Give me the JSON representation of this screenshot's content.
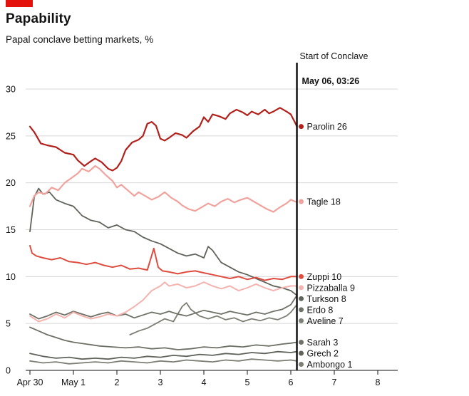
{
  "accent_color": "#E3120B",
  "header": {
    "title": "Papability",
    "subtitle": "Papal conclave betting markets, %"
  },
  "chart_data": {
    "type": "line",
    "title": "Papability",
    "subtitle": "Papal conclave betting markets, %",
    "grid": "horizontal",
    "legend_position": "right-of-lines",
    "x_axis": {
      "labels": [
        "Apr 30",
        "May 1",
        "2",
        "3",
        "4",
        "5",
        "6",
        "7",
        "8"
      ],
      "values": [
        0,
        1,
        2,
        3,
        4,
        5,
        6,
        7,
        8
      ],
      "unit": "days"
    },
    "y_axis": {
      "ticks": [
        0,
        5,
        10,
        15,
        20,
        25,
        30
      ],
      "range": [
        0,
        30
      ]
    },
    "annotation": {
      "label": "Start of Conclave",
      "timestamp": "May 06, 03:26",
      "x": 6.14,
      "color": "#121212"
    },
    "series": [
      {
        "id": "parolin",
        "name": "Parolin",
        "end_value": 26,
        "end_label": "Parolin 26",
        "color": "#b2201c",
        "width": 2.2,
        "x": [
          0,
          0.1,
          0.25,
          0.4,
          0.6,
          0.8,
          1.0,
          1.1,
          1.25,
          1.4,
          1.5,
          1.65,
          1.8,
          1.9,
          2.0,
          2.1,
          2.2,
          2.35,
          2.5,
          2.6,
          2.7,
          2.8,
          2.9,
          3.0,
          3.1,
          3.2,
          3.35,
          3.5,
          3.6,
          3.75,
          3.9,
          4.0,
          4.1,
          4.2,
          4.35,
          4.5,
          4.6,
          4.75,
          4.9,
          5.0,
          5.1,
          5.25,
          5.4,
          5.5,
          5.6,
          5.75,
          5.9,
          6.0,
          6.1,
          6.14
        ],
        "values": [
          26,
          25.4,
          24.2,
          24.0,
          23.8,
          23.2,
          23.0,
          22.4,
          21.8,
          22.3,
          22.6,
          22.2,
          21.5,
          21.3,
          21.6,
          22.3,
          23.5,
          24.3,
          24.6,
          25.0,
          26.3,
          26.5,
          26.1,
          24.7,
          24.5,
          24.8,
          25.3,
          25.1,
          24.8,
          25.5,
          26.0,
          27.0,
          26.5,
          27.3,
          27.1,
          26.8,
          27.4,
          27.8,
          27.5,
          27.2,
          27.6,
          27.3,
          27.8,
          27.4,
          27.6,
          28.0,
          27.6,
          27.3,
          26.4,
          26
        ]
      },
      {
        "id": "tagle",
        "name": "Tagle",
        "end_value": 18,
        "end_label": "Tagle 18",
        "color": "#f2a29c",
        "width": 2.2,
        "x": [
          0,
          0.1,
          0.2,
          0.35,
          0.5,
          0.65,
          0.8,
          0.95,
          1.1,
          1.2,
          1.35,
          1.5,
          1.6,
          1.75,
          1.9,
          2.0,
          2.1,
          2.25,
          2.4,
          2.5,
          2.65,
          2.8,
          2.95,
          3.1,
          3.25,
          3.4,
          3.5,
          3.65,
          3.8,
          3.95,
          4.1,
          4.25,
          4.4,
          4.55,
          4.7,
          4.85,
          5.0,
          5.15,
          5.3,
          5.45,
          5.6,
          5.75,
          5.9,
          6.0,
          6.1,
          6.14
        ],
        "values": [
          17.5,
          18.6,
          19.0,
          18.8,
          19.5,
          19.2,
          20.0,
          20.5,
          21.0,
          21.5,
          21.2,
          21.8,
          21.5,
          20.8,
          20.2,
          19.5,
          19.8,
          19.2,
          18.6,
          19.0,
          18.6,
          18.2,
          18.5,
          19.0,
          18.4,
          18.0,
          17.6,
          17.2,
          17.0,
          17.4,
          17.8,
          17.5,
          18.0,
          18.3,
          17.9,
          18.2,
          18.4,
          18.0,
          17.6,
          17.2,
          16.9,
          17.4,
          17.8,
          18.2,
          18.0,
          18.0
        ]
      },
      {
        "id": "zuppi",
        "name": "Zuppi",
        "end_value": 10,
        "end_label": "Zuppi 10",
        "color": "#de4c3f",
        "width": 2,
        "x": [
          0,
          0.05,
          0.15,
          0.3,
          0.5,
          0.7,
          0.9,
          1.1,
          1.3,
          1.5,
          1.7,
          1.9,
          2.1,
          2.3,
          2.5,
          2.7,
          2.85,
          2.95,
          3.05,
          3.2,
          3.4,
          3.6,
          3.8,
          4.0,
          4.2,
          4.4,
          4.6,
          4.8,
          5.0,
          5.2,
          5.4,
          5.6,
          5.8,
          6.0,
          6.14
        ],
        "values": [
          13.3,
          12.5,
          12.2,
          12.0,
          11.8,
          12.0,
          11.6,
          11.5,
          11.3,
          11.5,
          11.2,
          11.0,
          11.2,
          10.8,
          10.9,
          10.7,
          13.0,
          11.0,
          10.6,
          10.5,
          10.3,
          10.5,
          10.6,
          10.4,
          10.2,
          10.0,
          9.8,
          10.0,
          9.7,
          9.9,
          9.6,
          9.8,
          9.7,
          10.0,
          10
        ]
      },
      {
        "id": "pizzaballa",
        "name": "Pizzaballa",
        "end_value": 9,
        "end_label": "Pizzaballa 9",
        "color": "#f4b3ae",
        "width": 2,
        "x": [
          0,
          0.2,
          0.4,
          0.6,
          0.8,
          1.0,
          1.2,
          1.4,
          1.6,
          1.8,
          2.0,
          2.2,
          2.4,
          2.6,
          2.8,
          3.0,
          3.1,
          3.2,
          3.4,
          3.6,
          3.8,
          4.0,
          4.2,
          4.4,
          4.6,
          4.8,
          5.0,
          5.2,
          5.4,
          5.6,
          5.8,
          6.0,
          6.14
        ],
        "values": [
          5.8,
          5.2,
          5.5,
          6.0,
          5.6,
          6.2,
          5.8,
          5.5,
          5.7,
          6.0,
          5.8,
          6.2,
          6.8,
          7.5,
          8.5,
          9.0,
          9.4,
          9.0,
          9.2,
          8.8,
          9.0,
          9.4,
          9.0,
          8.7,
          9.0,
          8.5,
          8.8,
          9.2,
          8.8,
          8.5,
          8.8,
          9.0,
          9
        ]
      },
      {
        "id": "turkson",
        "name": "Turkson",
        "end_value": 8,
        "end_label": "Turkson 8",
        "color": "#5f635a",
        "width": 1.8,
        "x": [
          0,
          0.1,
          0.2,
          0.3,
          0.45,
          0.6,
          0.8,
          1.0,
          1.2,
          1.4,
          1.6,
          1.8,
          2.0,
          2.2,
          2.4,
          2.6,
          2.8,
          3.0,
          3.2,
          3.4,
          3.6,
          3.8,
          4.0,
          4.1,
          4.2,
          4.4,
          4.6,
          4.8,
          5.0,
          5.2,
          5.4,
          5.6,
          5.8,
          6.0,
          6.14
        ],
        "values": [
          14.8,
          18.5,
          19.4,
          18.8,
          19.0,
          18.2,
          17.8,
          17.5,
          16.5,
          16.0,
          15.8,
          15.2,
          15.5,
          15.0,
          14.8,
          14.2,
          13.8,
          13.5,
          13.0,
          12.5,
          12.2,
          12.4,
          12.0,
          13.2,
          12.8,
          11.5,
          11.0,
          10.5,
          10.2,
          9.8,
          9.4,
          9.0,
          8.8,
          8.5,
          8
        ]
      },
      {
        "id": "erdo",
        "name": "Erdo",
        "end_value": 8,
        "end_label": "Erdo 8",
        "color": "#6d7166",
        "width": 1.8,
        "x": [
          0,
          0.2,
          0.4,
          0.6,
          0.8,
          1.0,
          1.2,
          1.4,
          1.6,
          1.8,
          2.0,
          2.2,
          2.4,
          2.6,
          2.8,
          3.0,
          3.2,
          3.4,
          3.6,
          3.8,
          4.0,
          4.2,
          4.4,
          4.6,
          4.8,
          5.0,
          5.2,
          5.4,
          5.6,
          5.8,
          6.0,
          6.14
        ],
        "values": [
          6.0,
          5.5,
          5.8,
          6.2,
          5.9,
          6.3,
          6.0,
          5.7,
          6.0,
          6.2,
          5.8,
          6.0,
          5.6,
          5.9,
          6.2,
          6.0,
          6.3,
          6.0,
          5.8,
          6.1,
          6.4,
          6.2,
          6.0,
          6.3,
          6.1,
          5.9,
          6.2,
          6.0,
          6.3,
          6.5,
          7.0,
          8
        ]
      },
      {
        "id": "aveline",
        "name": "Aveline",
        "end_value": 7,
        "end_label": "Aveline 7",
        "color": "#7c7f74",
        "width": 1.8,
        "x": [
          2.3,
          2.5,
          2.7,
          2.9,
          3.1,
          3.3,
          3.5,
          3.6,
          3.7,
          3.9,
          4.1,
          4.3,
          4.5,
          4.7,
          4.9,
          5.1,
          5.3,
          5.5,
          5.7,
          5.9,
          6.0,
          6.14
        ],
        "values": [
          3.8,
          4.2,
          4.5,
          5.0,
          5.5,
          5.2,
          6.8,
          7.2,
          6.5,
          5.8,
          5.5,
          5.8,
          5.4,
          5.6,
          5.2,
          5.5,
          5.3,
          5.6,
          5.4,
          5.8,
          6.2,
          7
        ]
      },
      {
        "id": "sarah",
        "name": "Sarah",
        "end_value": 3,
        "end_label": "Sarah 3",
        "color": "#6d7166",
        "width": 1.8,
        "x": [
          0,
          0.2,
          0.4,
          0.6,
          0.8,
          1.0,
          1.3,
          1.6,
          1.9,
          2.2,
          2.5,
          2.8,
          3.1,
          3.4,
          3.7,
          4.0,
          4.3,
          4.6,
          4.9,
          5.2,
          5.5,
          5.8,
          6.0,
          6.14
        ],
        "values": [
          4.6,
          4.2,
          3.8,
          3.5,
          3.2,
          3.0,
          2.8,
          2.6,
          2.5,
          2.4,
          2.5,
          2.3,
          2.4,
          2.2,
          2.3,
          2.5,
          2.4,
          2.6,
          2.5,
          2.7,
          2.6,
          2.8,
          2.9,
          3
        ]
      },
      {
        "id": "grech",
        "name": "Grech",
        "end_value": 2,
        "end_label": "Grech 2",
        "color": "#5f635a",
        "width": 1.8,
        "x": [
          0,
          0.3,
          0.6,
          0.9,
          1.2,
          1.5,
          1.8,
          2.1,
          2.4,
          2.7,
          3.0,
          3.3,
          3.6,
          3.9,
          4.2,
          4.5,
          4.8,
          5.1,
          5.4,
          5.7,
          6.0,
          6.14
        ],
        "values": [
          1.8,
          1.5,
          1.3,
          1.4,
          1.2,
          1.3,
          1.2,
          1.4,
          1.3,
          1.5,
          1.4,
          1.6,
          1.5,
          1.7,
          1.6,
          1.8,
          1.7,
          1.9,
          1.8,
          2.0,
          1.9,
          2
        ]
      },
      {
        "id": "ambongo",
        "name": "Ambongo",
        "end_value": 1,
        "end_label": "Ambongo 1",
        "color": "#7c7f74",
        "width": 1.8,
        "x": [
          0,
          0.3,
          0.6,
          0.9,
          1.2,
          1.5,
          1.8,
          2.1,
          2.4,
          2.7,
          3.0,
          3.3,
          3.6,
          3.9,
          4.2,
          4.5,
          4.8,
          5.1,
          5.4,
          5.7,
          6.0,
          6.14
        ],
        "values": [
          1.0,
          0.8,
          0.9,
          0.7,
          0.8,
          0.9,
          0.8,
          1.0,
          0.9,
          0.8,
          1.0,
          0.9,
          1.1,
          1.0,
          0.9,
          1.1,
          1.0,
          1.2,
          1.1,
          1.0,
          1.1,
          1
        ]
      }
    ]
  }
}
